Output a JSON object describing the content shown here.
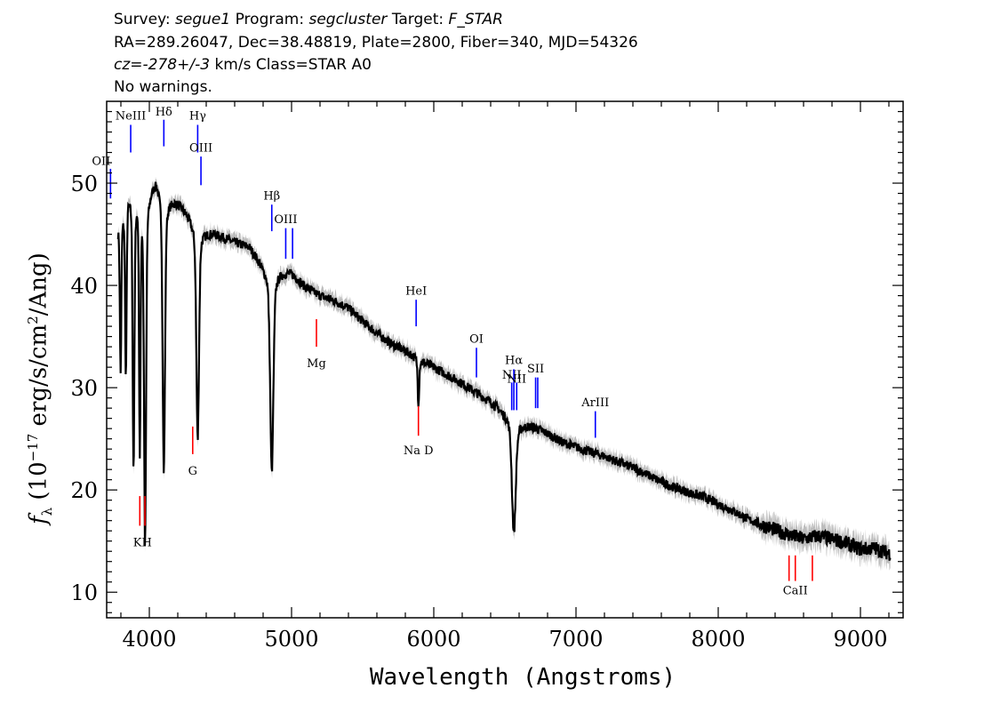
{
  "header": {
    "survey_label": "Survey:",
    "survey": "segue1",
    "program_label": "Program:",
    "program": "segcluster",
    "target_label": "Target:",
    "target": "F_STAR",
    "line2": "RA=289.26047, Dec=38.48819, Plate=2800, Fiber=340, MJD=54326",
    "redshift": "cz=-278+/-3",
    "redshift_units": "km/s Class=STAR A0",
    "warnings": "No warnings."
  },
  "chart_data": {
    "type": "line",
    "xlabel": "Wavelength (Angstroms)",
    "ylabel": "f_λ (10^-17 erg/s/cm^2/Ang)",
    "ylabel_parts": {
      "f": "f",
      "sub": "λ",
      "pre": " (10",
      "exp": "−17",
      "mid": " erg/s/cm",
      "exp2": "2",
      "post": "/Ang)"
    },
    "xlim": [
      3700,
      9300
    ],
    "ylim": [
      7.5,
      58
    ],
    "xticks": [
      4000,
      5000,
      6000,
      7000,
      8000,
      9000
    ],
    "yticks": [
      10,
      20,
      30,
      40,
      50
    ],
    "continuum": [
      [
        3780,
        46
      ],
      [
        3850,
        49.5
      ],
      [
        3920,
        50
      ],
      [
        4000,
        49.5
      ],
      [
        4050,
        50.5
      ],
      [
        4100,
        49
      ],
      [
        4200,
        48
      ],
      [
        4300,
        46.5
      ],
      [
        4400,
        45.3
      ],
      [
        4500,
        44.8
      ],
      [
        4600,
        44.2
      ],
      [
        4700,
        43.8
      ],
      [
        4800,
        42
      ],
      [
        4900,
        41.5
      ],
      [
        5000,
        41.2
      ],
      [
        5100,
        39.8
      ],
      [
        5200,
        39
      ],
      [
        5300,
        38.5
      ],
      [
        5400,
        37.8
      ],
      [
        5500,
        36.5
      ],
      [
        5600,
        35.3
      ],
      [
        5700,
        34.3
      ],
      [
        5800,
        33.6
      ],
      [
        5900,
        32.8
      ],
      [
        6000,
        32
      ],
      [
        6100,
        31.2
      ],
      [
        6200,
        30.4
      ],
      [
        6300,
        29.5
      ],
      [
        6400,
        28.6
      ],
      [
        6500,
        27.6
      ],
      [
        6600,
        26.6
      ],
      [
        6700,
        26.2
      ],
      [
        6800,
        25.5
      ],
      [
        6900,
        24.7
      ],
      [
        7000,
        24.2
      ],
      [
        7100,
        23.7
      ],
      [
        7200,
        23.3
      ],
      [
        7300,
        22.7
      ],
      [
        7400,
        22.2
      ],
      [
        7500,
        21.5
      ],
      [
        7600,
        20.8
      ],
      [
        7700,
        20.2
      ],
      [
        7800,
        19.7
      ],
      [
        7900,
        19.3
      ],
      [
        8000,
        18.6
      ],
      [
        8100,
        18
      ],
      [
        8200,
        17.2
      ],
      [
        8300,
        16.6
      ],
      [
        8400,
        16.1
      ],
      [
        8500,
        15.6
      ],
      [
        8600,
        15.2
      ],
      [
        8700,
        15.5
      ],
      [
        8800,
        15.2
      ],
      [
        8900,
        14.8
      ],
      [
        9000,
        14.2
      ],
      [
        9100,
        14.3
      ],
      [
        9200,
        13.8
      ]
    ],
    "absorption": [
      {
        "center": 3798,
        "depth": 12,
        "width": 5
      },
      {
        "center": 3835,
        "depth": 14,
        "width": 5
      },
      {
        "center": 3889,
        "depth": 22,
        "width": 6
      },
      {
        "center": 3933,
        "depth": 20,
        "width": 5
      },
      {
        "center": 3970,
        "depth": 28,
        "width": 7
      },
      {
        "center": 4102,
        "depth": 22,
        "width": 8
      },
      {
        "center": 4340,
        "depth": 17,
        "width": 9
      },
      {
        "center": 4861,
        "depth": 16,
        "width": 11
      },
      {
        "center": 5892,
        "depth": 3.5,
        "width": 5
      },
      {
        "center": 6563,
        "depth": 9,
        "width": 13
      }
    ],
    "noise_amplitude": 0.45,
    "error_band": 0.7,
    "emission_lines": [
      {
        "label": "NeIII",
        "wave": 3869,
        "y0": 53,
        "y1": 55.7,
        "label_y": 56.2
      },
      {
        "label": "Hδ",
        "wave": 4102,
        "y0": 53.6,
        "y1": 56.2,
        "label_y": 56.6
      },
      {
        "label": "Hγ",
        "wave": 4340,
        "y0": 53,
        "y1": 55.7,
        "label_y": 56.2
      },
      {
        "label": "OIII",
        "wave": 4363,
        "y0": 49.8,
        "y1": 52.6,
        "label_y": 53.1
      },
      {
        "label": "OII",
        "wave": 3727,
        "y0": 48.5,
        "y1": 51.4,
        "label_y": 51.8
      },
      {
        "label": "Hβ",
        "wave": 4861,
        "y0": 45.3,
        "y1": 47.9,
        "label_y": 48.4
      },
      {
        "label": "OIII",
        "wave": 4959,
        "y0": 42.6,
        "y1": 45.6,
        "label_y": 46.1
      },
      {
        "label": "",
        "wave": 5007,
        "y0": 42.6,
        "y1": 45.6,
        "label_y": 0
      },
      {
        "label": "HeI",
        "wave": 5876,
        "y0": 36,
        "y1": 38.6,
        "label_y": 39.1
      },
      {
        "label": "OI",
        "wave": 6300,
        "y0": 31,
        "y1": 33.9,
        "label_y": 34.4
      },
      {
        "label": "NII",
        "wave": 6548,
        "y0": 27.8,
        "y1": 30.5,
        "label_y": 30.9
      },
      {
        "label": "Hα",
        "wave": 6563,
        "y0": 27.8,
        "y1": 31.8,
        "label_y": 32.3
      },
      {
        "label": "NII",
        "wave": 6583,
        "y0": 27.8,
        "y1": 30.5,
        "label_y": 30.5
      },
      {
        "label": "SII",
        "wave": 6716,
        "y0": 28,
        "y1": 31,
        "label_y": 31.5
      },
      {
        "label": "",
        "wave": 6731,
        "y0": 28,
        "y1": 31,
        "label_y": 0
      },
      {
        "label": "ArIII",
        "wave": 7136,
        "y0": 25.1,
        "y1": 27.7,
        "label_y": 28.2
      }
    ],
    "absorption_labels": [
      {
        "label": "KH",
        "wave": 3952,
        "marks": [
          3933,
          3969
        ],
        "y0": 16.5,
        "y1": 19.4,
        "label_y": 14.5
      },
      {
        "label": "G",
        "wave": 4305,
        "marks": [
          4305
        ],
        "y0": 23.5,
        "y1": 26.2,
        "label_y": 21.5
      },
      {
        "label": "Mg",
        "wave": 5175,
        "marks": [
          5175
        ],
        "y0": 34,
        "y1": 36.7,
        "label_y": 32
      },
      {
        "label": "Na D",
        "wave": 5892,
        "marks": [
          5892
        ],
        "y0": 25.3,
        "y1": 28.2,
        "label_y": 23.5
      },
      {
        "label": "CaII",
        "wave": 8542,
        "marks": [
          8498,
          8542,
          8662
        ],
        "y0": 11.1,
        "y1": 13.6,
        "label_y": 9.8
      }
    ],
    "colors": {
      "spectrum": "#000000",
      "error": "#bdbdbd",
      "emission": "#0000ff",
      "absorption": "#ff0000",
      "axes": "#000000"
    }
  }
}
